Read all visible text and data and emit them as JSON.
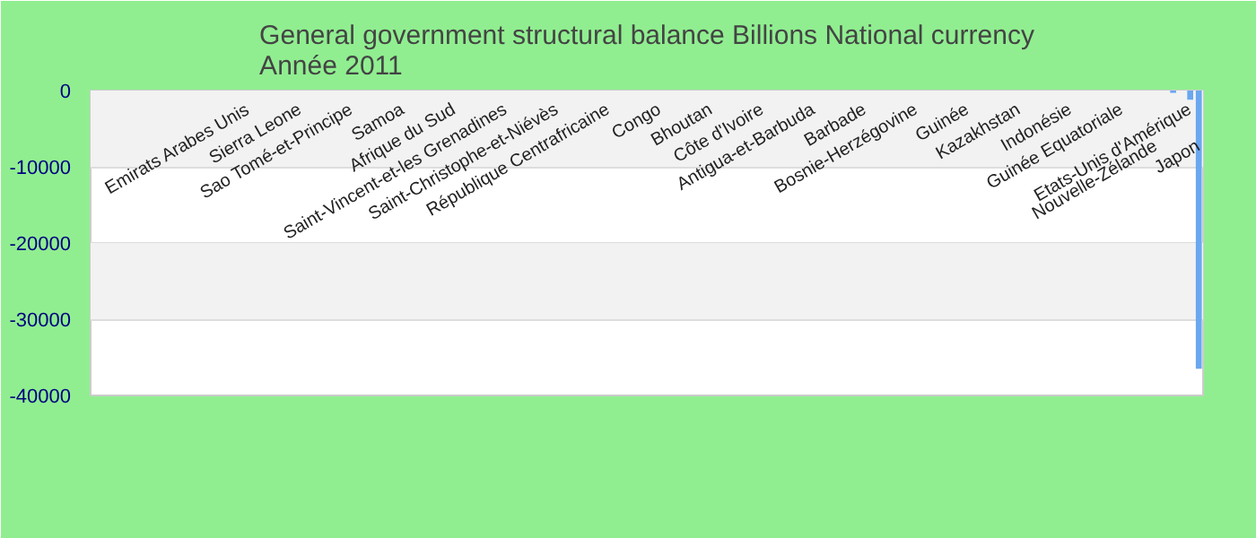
{
  "chart_data": {
    "type": "bar",
    "title": "General government structural balance Billions National currency",
    "subtitle": "Année 2011",
    "categories": [
      null,
      null,
      null,
      null,
      null,
      null,
      null,
      null,
      null,
      null,
      null,
      null,
      null,
      null,
      null,
      null,
      null,
      null,
      "Emirats Arabes Unis",
      null,
      null,
      null,
      null,
      null,
      "Sierra Leone",
      null,
      null,
      null,
      null,
      null,
      "Sao Tomé-et-Principe",
      null,
      null,
      null,
      null,
      null,
      "Samoa",
      null,
      null,
      null,
      null,
      null,
      "Afrique du Sud",
      null,
      null,
      null,
      null,
      null,
      "Saint-Vincent-et-les Grenadines",
      null,
      null,
      null,
      null,
      null,
      "Saint-Christophe-et-Niévès",
      null,
      null,
      null,
      null,
      null,
      "République Centrafricaine",
      null,
      null,
      null,
      null,
      null,
      "Congo",
      null,
      null,
      null,
      null,
      null,
      "Bhoutan",
      null,
      null,
      null,
      null,
      null,
      "Côte d'Ivoire",
      null,
      null,
      null,
      null,
      null,
      "Antigua-et-Barbuda",
      null,
      null,
      null,
      null,
      null,
      "Barbade",
      null,
      null,
      null,
      null,
      null,
      "Bosnie-Herzégovine",
      null,
      null,
      null,
      null,
      null,
      "Guinée",
      null,
      null,
      null,
      null,
      null,
      "Kazakhstan",
      null,
      null,
      null,
      null,
      null,
      "Indonésie",
      null,
      null,
      null,
      null,
      null,
      "Guinée Equatoriale",
      null,
      null,
      null,
      "Nouvelle-Zélande",
      null,
      null,
      null,
      "Etats-Unis d'Amérique",
      "Japon"
    ],
    "values": [
      0,
      0,
      0,
      0,
      0,
      0,
      0,
      0,
      0,
      0,
      0,
      0,
      0,
      0,
      0,
      0,
      0,
      0,
      0,
      0,
      0,
      0,
      0,
      0,
      0,
      0,
      0,
      0,
      0,
      0,
      0,
      0,
      0,
      0,
      0,
      0,
      0,
      0,
      0,
      0,
      0,
      0,
      0,
      0,
      0,
      0,
      0,
      0,
      0,
      0,
      0,
      0,
      0,
      0,
      0,
      0,
      0,
      0,
      0,
      0,
      0,
      0,
      0,
      0,
      0,
      0,
      0,
      0,
      0,
      0,
      0,
      0,
      0,
      0,
      0,
      0,
      0,
      0,
      0,
      0,
      0,
      0,
      0,
      0,
      0,
      0,
      0,
      0,
      0,
      0,
      0,
      0,
      0,
      0,
      0,
      0,
      0,
      0,
      0,
      0,
      0,
      0,
      0,
      0,
      0,
      0,
      0,
      0,
      0,
      0,
      0,
      0,
      0,
      0,
      0,
      0,
      0,
      0,
      0,
      0,
      0,
      0,
      0,
      0,
      0,
      0,
      -300,
      0,
      -1200,
      -36500
    ],
    "color": "#6aa7ef",
    "ylim": [
      -40000,
      0
    ],
    "yticks": [
      -40000,
      -30000,
      -20000,
      -10000,
      0
    ],
    "grid": "y"
  }
}
